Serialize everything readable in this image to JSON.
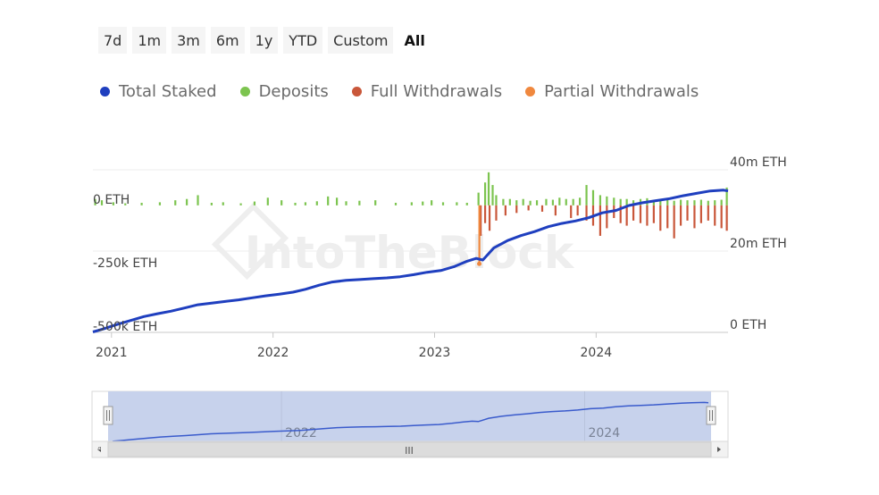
{
  "ranges": {
    "items": [
      "7d",
      "1m",
      "3m",
      "6m",
      "1y",
      "YTD",
      "Custom",
      "All"
    ],
    "active": "All"
  },
  "legend": [
    {
      "label": "Total Staked",
      "color": "#1f3fbf"
    },
    {
      "label": "Deposits",
      "color": "#7cc44f"
    },
    {
      "label": "Full Withdrawals",
      "color": "#c9573a"
    },
    {
      "label": "Partial Withdrawals",
      "color": "#f0883e"
    }
  ],
  "watermark": "IntoTheBlock",
  "navigator": {
    "labels": [
      "2022",
      "2024"
    ],
    "grip": "III"
  },
  "chart_data": {
    "type": "line+bar",
    "title": "",
    "x_range": [
      "2020-11-20",
      "2024-10-25"
    ],
    "x_ticks": [
      "2021",
      "2022",
      "2023",
      "2024"
    ],
    "left_axis": {
      "ticks": [
        "0 ETH",
        "-250k ETH",
        "-500k ETH"
      ],
      "values": [
        0,
        -250000,
        -500000
      ],
      "range": [
        -500000,
        140000
      ]
    },
    "right_axis": {
      "ticks": [
        "40m ETH",
        "20m ETH",
        "0 ETH"
      ],
      "values": [
        40000000,
        20000000,
        0
      ],
      "range": [
        0,
        40000000
      ]
    },
    "series": [
      {
        "name": "Total Staked",
        "color": "#1f3fbf",
        "axis": "right",
        "x": [
          "2020-11-20",
          "2020-12-15",
          "2021-01-15",
          "2021-02-15",
          "2021-03-15",
          "2021-04-15",
          "2021-05-15",
          "2021-06-15",
          "2021-07-15",
          "2021-08-15",
          "2021-09-15",
          "2021-10-15",
          "2021-11-15",
          "2021-12-15",
          "2022-01-15",
          "2022-02-15",
          "2022-03-15",
          "2022-04-15",
          "2022-05-15",
          "2022-06-15",
          "2022-07-15",
          "2022-08-15",
          "2022-09-15",
          "2022-10-15",
          "2022-11-15",
          "2022-12-15",
          "2023-01-15",
          "2023-02-15",
          "2023-03-15",
          "2023-04-05",
          "2023-04-20",
          "2023-05-15",
          "2023-06-15",
          "2023-07-15",
          "2023-08-15",
          "2023-09-15",
          "2023-10-15",
          "2023-11-15",
          "2023-12-15",
          "2024-01-15",
          "2024-02-15",
          "2024-03-15",
          "2024-04-15",
          "2024-05-15",
          "2024-06-15",
          "2024-07-15",
          "2024-08-15",
          "2024-09-15",
          "2024-10-15",
          "2024-10-25"
        ],
        "values": [
          0.1,
          0.9,
          2.0,
          3.0,
          3.9,
          4.6,
          5.2,
          6.0,
          6.8,
          7.2,
          7.6,
          8.0,
          8.5,
          9.0,
          9.4,
          9.9,
          10.6,
          11.6,
          12.4,
          12.8,
          13.0,
          13.2,
          13.4,
          13.7,
          14.2,
          14.8,
          15.2,
          16.2,
          17.5,
          18.2,
          17.8,
          20.8,
          22.6,
          23.8,
          24.8,
          26.0,
          26.8,
          27.4,
          28.2,
          29.4,
          30.0,
          31.2,
          31.9,
          32.4,
          32.9,
          33.6,
          34.2,
          34.8,
          35.0,
          34.8
        ]
      },
      {
        "name": "Deposits",
        "color": "#7cc44f",
        "axis": "left",
        "x": [
          "2020-11-25",
          "2020-12-10",
          "2021-01-05",
          "2021-02-01",
          "2021-03-10",
          "2021-04-20",
          "2021-05-25",
          "2021-06-20",
          "2021-07-15",
          "2021-08-15",
          "2021-09-10",
          "2021-10-20",
          "2021-11-20",
          "2021-12-20",
          "2022-01-20",
          "2022-02-20",
          "2022-03-15",
          "2022-04-10",
          "2022-05-05",
          "2022-05-25",
          "2022-06-15",
          "2022-07-15",
          "2022-08-20",
          "2022-10-05",
          "2022-11-10",
          "2022-12-05",
          "2022-12-25",
          "2023-01-20",
          "2023-02-20",
          "2023-03-15",
          "2023-04-10",
          "2023-04-25",
          "2023-05-03",
          "2023-05-12",
          "2023-05-20",
          "2023-06-05",
          "2023-06-20",
          "2023-07-05",
          "2023-07-20",
          "2023-08-05",
          "2023-08-20",
          "2023-09-10",
          "2023-09-25",
          "2023-10-10",
          "2023-10-25",
          "2023-11-10",
          "2023-11-25",
          "2023-12-10",
          "2023-12-25",
          "2024-01-10",
          "2024-01-25",
          "2024-02-10",
          "2024-02-25",
          "2024-03-10",
          "2024-03-25",
          "2024-04-10",
          "2024-04-25",
          "2024-05-10",
          "2024-05-25",
          "2024-06-10",
          "2024-06-25",
          "2024-07-10",
          "2024-07-25",
          "2024-08-10",
          "2024-08-25",
          "2024-09-10",
          "2024-09-25",
          "2024-10-10",
          "2024-10-22"
        ],
        "values": [
          25000,
          20000,
          12000,
          8000,
          10000,
          12000,
          20000,
          25000,
          40000,
          10000,
          12000,
          8000,
          15000,
          30000,
          20000,
          10000,
          12000,
          16000,
          35000,
          30000,
          16000,
          18000,
          20000,
          10000,
          12000,
          15000,
          20000,
          12000,
          12000,
          10000,
          50000,
          90000,
          130000,
          80000,
          40000,
          25000,
          25000,
          20000,
          25000,
          18000,
          20000,
          25000,
          22000,
          30000,
          25000,
          25000,
          30000,
          80000,
          60000,
          40000,
          35000,
          30000,
          25000,
          25000,
          20000,
          25000,
          28000,
          22000,
          20000,
          25000,
          18000,
          22000,
          20000,
          20000,
          22000,
          18000,
          20000,
          22000,
          70000
        ]
      },
      {
        "name": "Full Withdrawals",
        "color": "#c9573a",
        "axis": "left",
        "x": [
          "2023-04-15",
          "2023-04-25",
          "2023-05-05",
          "2023-05-20",
          "2023-06-10",
          "2023-07-05",
          "2023-08-01",
          "2023-09-01",
          "2023-10-01",
          "2023-11-05",
          "2023-11-20",
          "2023-12-10",
          "2023-12-25",
          "2024-01-10",
          "2024-01-25",
          "2024-02-10",
          "2024-02-25",
          "2024-03-10",
          "2024-03-25",
          "2024-04-10",
          "2024-04-25",
          "2024-05-10",
          "2024-05-25",
          "2024-06-10",
          "2024-06-25",
          "2024-07-10",
          "2024-07-25",
          "2024-08-10",
          "2024-08-25",
          "2024-09-10",
          "2024-09-25",
          "2024-10-10",
          "2024-10-22"
        ],
        "values": [
          -120000,
          -70000,
          -100000,
          -60000,
          -40000,
          -30000,
          -20000,
          -25000,
          -40000,
          -50000,
          -40000,
          -60000,
          -80000,
          -120000,
          -90000,
          -50000,
          -70000,
          -80000,
          -60000,
          -70000,
          -80000,
          -70000,
          -100000,
          -90000,
          -130000,
          -80000,
          -60000,
          -90000,
          -70000,
          -60000,
          -80000,
          -90000,
          -100000
        ]
      },
      {
        "name": "Partial Withdrawals",
        "color": "#f0883e",
        "axis": "left",
        "x": [
          "2023-04-12"
        ],
        "values": [
          -230000
        ]
      }
    ]
  }
}
